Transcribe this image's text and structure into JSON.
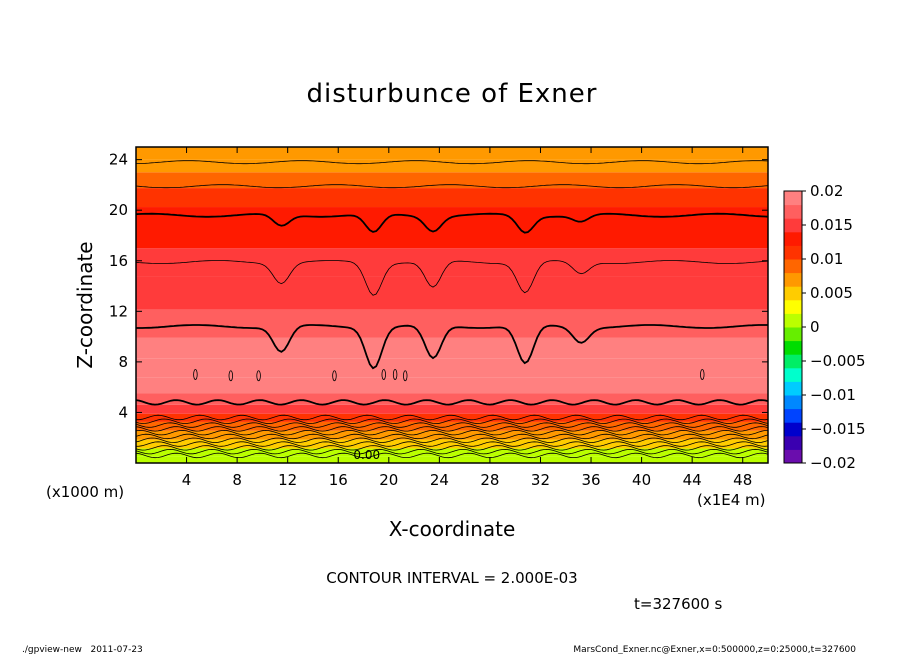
{
  "chart_data": {
    "type": "heatmap",
    "title": "disturbunce of Exner",
    "xlabel": "X-coordinate",
    "ylabel": "Z-coordinate",
    "x_unit": "(x1E4 m)",
    "y_unit": "(x1000 m)",
    "xlim": [
      0,
      50
    ],
    "ylim": [
      0,
      25
    ],
    "x_ticks": [
      4,
      8,
      12,
      16,
      20,
      24,
      28,
      32,
      36,
      40,
      44,
      48
    ],
    "y_ticks": [
      4,
      8,
      12,
      16,
      20,
      24
    ],
    "x_tick_labels": [
      "4",
      "8",
      "12",
      "16",
      "20",
      "24",
      "28",
      "32",
      "36",
      "40",
      "44",
      "48"
    ],
    "y_tick_labels": [
      "4",
      "8",
      "12",
      "16",
      "20",
      "24"
    ],
    "colorbar": {
      "ticks": [
        0.02,
        0.015,
        0.01,
        0.005,
        0,
        -0.005,
        -0.01,
        -0.015,
        -0.02
      ],
      "labels": [
        "0.02",
        "0.015",
        "0.01",
        "0.005",
        "0",
        "−0.005",
        "−0.01",
        "−0.015",
        "−0.02"
      ],
      "range": [
        -0.02,
        0.02
      ],
      "colors": [
        "#6a0dad",
        "#3a00b0",
        "#0000cc",
        "#0044ff",
        "#0088ff",
        "#00ccff",
        "#00ffcc",
        "#00ee66",
        "#00dd00",
        "#66ee00",
        "#bbff00",
        "#ffff00",
        "#ffcc00",
        "#ff9900",
        "#ff6600",
        "#ff3300",
        "#ff1a00",
        "#ff3b3b",
        "#ff5f5f",
        "#ff8080"
      ]
    },
    "contour_interval": "CONTOUR INTERVAL = 2.000E-03",
    "vertical_profile": [
      {
        "z": 0.2,
        "value": 0.0
      },
      {
        "z": 0.8,
        "value": 0.002
      },
      {
        "z": 1.5,
        "value": 0.004
      },
      {
        "z": 2.2,
        "value": 0.006
      },
      {
        "z": 2.9,
        "value": 0.008
      },
      {
        "z": 3.6,
        "value": 0.01
      },
      {
        "z": 4.2,
        "value": 0.014
      },
      {
        "z": 5.0,
        "value": 0.016
      },
      {
        "z": 6.0,
        "value": 0.018
      },
      {
        "z": 7.5,
        "value": 0.0185
      },
      {
        "z": 9.0,
        "value": 0.018
      },
      {
        "z": 10.8,
        "value": 0.016
      },
      {
        "z": 13.5,
        "value": 0.0155
      },
      {
        "z": 16.0,
        "value": 0.014
      },
      {
        "z": 18.0,
        "value": 0.0135
      },
      {
        "z": 19.5,
        "value": 0.012
      },
      {
        "z": 21.0,
        "value": 0.01
      },
      {
        "z": 22.5,
        "value": 0.008
      },
      {
        "z": 23.5,
        "value": 0.007
      },
      {
        "z": 24.5,
        "value": 0.006
      }
    ],
    "contour_levels_z": [
      0.6,
      0.9,
      1.2,
      1.5,
      1.8,
      2.1,
      2.4,
      2.7,
      3.0,
      3.3,
      3.6,
      4.8,
      10.8,
      15.9,
      19.6,
      21.9,
      23.8
    ],
    "dips": [
      {
        "x": 11.5,
        "depth": 2.0
      },
      {
        "x": 18.8,
        "depth": 3.2
      },
      {
        "x": 23.5,
        "depth": 2.6
      },
      {
        "x": 30.8,
        "depth": 3.0
      },
      {
        "x": 35.2,
        "depth": 1.2
      }
    ],
    "contour_label": "0.00"
  },
  "time_label": "t=327600 s",
  "footer": {
    "left": "./gpview-new   2011-07-23",
    "right": "MarsCond_Exner.nc@Exner,x=0:500000,z=0:25000,t=327600"
  }
}
